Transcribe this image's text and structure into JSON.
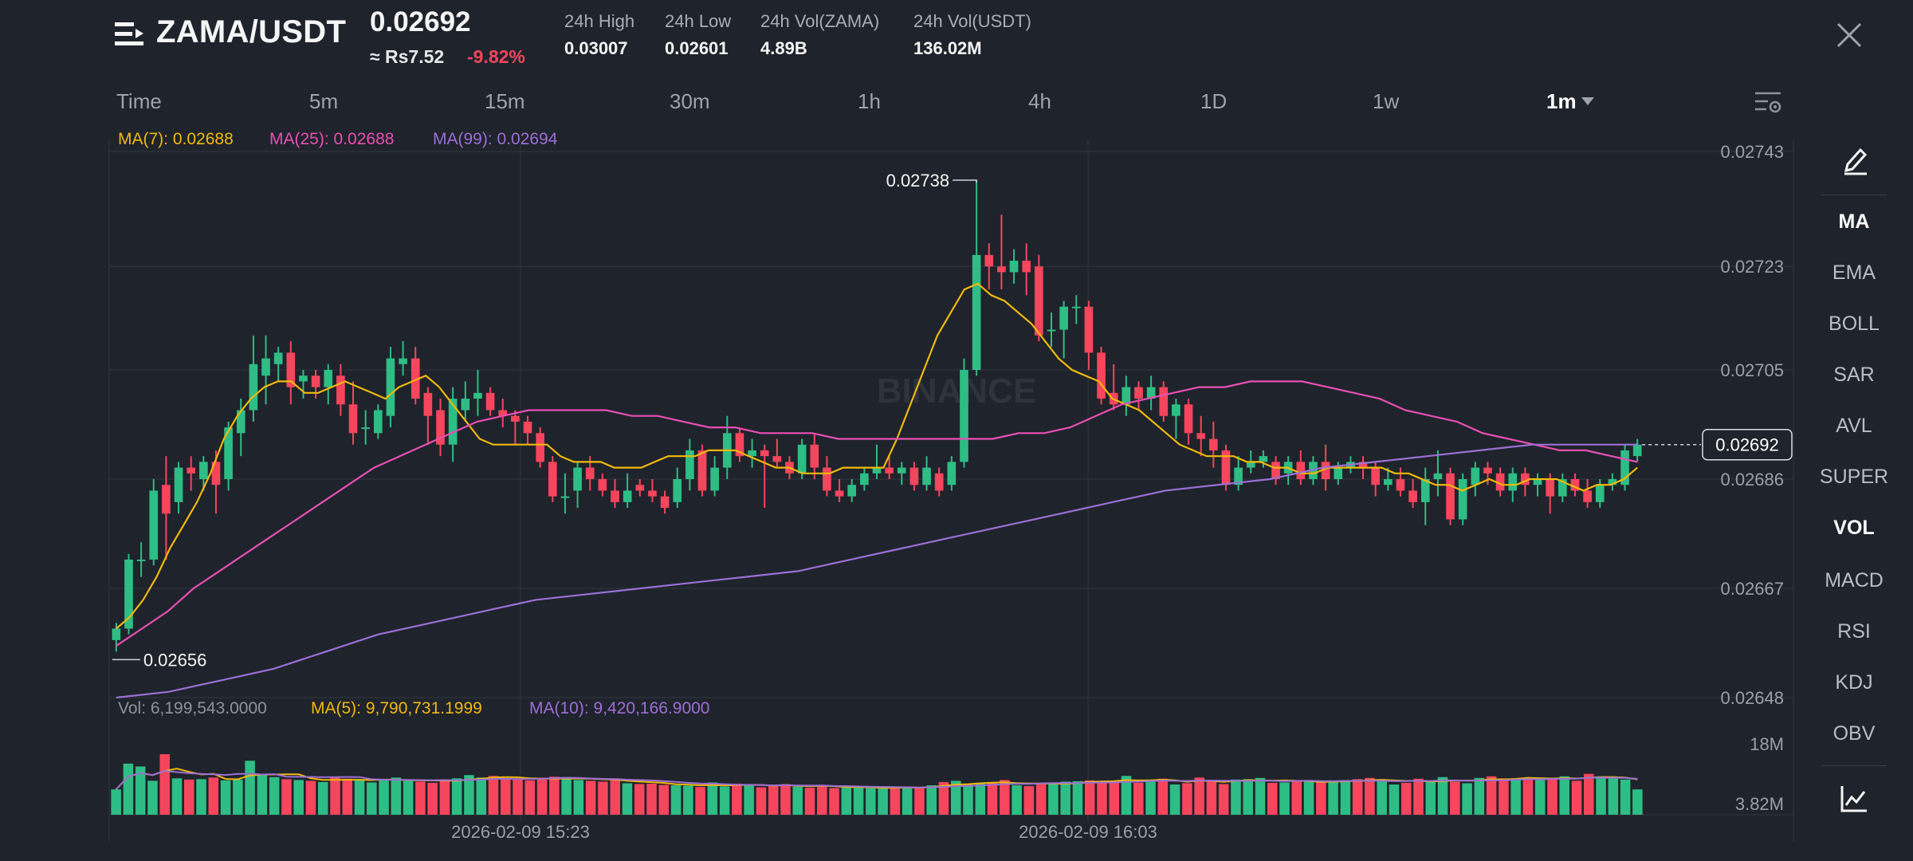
{
  "header": {
    "pair": "ZAMA/USDT",
    "last_price": "0.02692",
    "fiat_price": "≈ Rs7.52",
    "change_pct": "-9.82%",
    "stats": [
      {
        "label": "24h High",
        "value": "0.03007"
      },
      {
        "label": "24h Low",
        "value": "0.02601"
      },
      {
        "label": "24h Vol(ZAMA)",
        "value": "4.89B"
      },
      {
        "label": "24h Vol(USDT)",
        "value": "136.02M"
      }
    ],
    "icons": {
      "menu": "menu-icon",
      "close": "close-icon"
    }
  },
  "tabs": [
    {
      "label": "Time"
    },
    {
      "label": "5m"
    },
    {
      "label": "15m"
    },
    {
      "label": "30m"
    },
    {
      "label": "1h"
    },
    {
      "label": "4h"
    },
    {
      "label": "1D"
    },
    {
      "label": "1w"
    },
    {
      "label": "1m",
      "selected": true
    }
  ],
  "legends": {
    "ma7": "MA(7): 0.02688",
    "ma25": "MA(25): 0.02688",
    "ma99": "MA(99): 0.02694",
    "vol": "Vol: 6,199,543.0000",
    "vol_ma5": "MA(5): 9,790,731.1999",
    "vol_ma10": "MA(10): 9,420,166.9000"
  },
  "price_axis": [
    "0.02743",
    "0.02723",
    "0.02705",
    "0.02686",
    "0.02667",
    "0.02648"
  ],
  "current_price_tag": "0.02692",
  "high_marker": "0.02738",
  "low_marker": "0.02656",
  "volume_axis": [
    "18M",
    "3.82M"
  ],
  "time_axis": [
    "2026-02-09 15:23",
    "2026-02-09 16:03"
  ],
  "watermark": "BINANCE",
  "sidebar": {
    "items": [
      {
        "label": "MA",
        "active": true
      },
      {
        "label": "EMA"
      },
      {
        "label": "BOLL"
      },
      {
        "label": "SAR"
      },
      {
        "label": "AVL"
      },
      {
        "label": "SUPER"
      },
      {
        "label": "VOL",
        "active": true
      },
      {
        "label": "MACD"
      },
      {
        "label": "RSI"
      },
      {
        "label": "KDJ"
      },
      {
        "label": "OBV"
      }
    ],
    "icons": {
      "top": "pencil-draw-icon",
      "bottom": "line-chart-icon"
    }
  },
  "colors": {
    "background": "#1f232b",
    "up": "#2ebd85",
    "down": "#f6465d",
    "ma7": "#f0b90b",
    "ma25": "#e84fb4",
    "ma99": "#9b6fd6",
    "grid": "#2b3039"
  },
  "chart_data": {
    "type": "candlestick",
    "interval": "1m",
    "y_range": [
      0.02648,
      0.02743
    ],
    "candles": [
      [
        0.02658,
        0.0266,
        0.02656,
        0.02661
      ],
      [
        0.0266,
        0.02672,
        0.02659,
        0.02673
      ],
      [
        0.02672,
        0.02672,
        0.02669,
        0.02675
      ],
      [
        0.02672,
        0.02684,
        0.02671,
        0.02686
      ],
      [
        0.02685,
        0.0268,
        0.02672,
        0.0269
      ],
      [
        0.02682,
        0.02688,
        0.0268,
        0.02689
      ],
      [
        0.02688,
        0.02687,
        0.02684,
        0.0269
      ],
      [
        0.02686,
        0.02689,
        0.02684,
        0.0269
      ],
      [
        0.02689,
        0.02685,
        0.0268,
        0.02691
      ],
      [
        0.02686,
        0.02695,
        0.02684,
        0.02696
      ],
      [
        0.02694,
        0.02698,
        0.0269,
        0.027
      ],
      [
        0.02698,
        0.02706,
        0.02696,
        0.02711
      ],
      [
        0.02704,
        0.02707,
        0.02699,
        0.02711
      ],
      [
        0.02706,
        0.02708,
        0.02703,
        0.02709
      ],
      [
        0.02708,
        0.02702,
        0.02699,
        0.0271
      ],
      [
        0.02703,
        0.02704,
        0.027,
        0.02705
      ],
      [
        0.02704,
        0.02702,
        0.027,
        0.02705
      ],
      [
        0.02702,
        0.02705,
        0.02699,
        0.02706
      ],
      [
        0.02704,
        0.02699,
        0.02697,
        0.02706
      ],
      [
        0.02699,
        0.02694,
        0.02692,
        0.02703
      ],
      [
        0.02695,
        0.02695,
        0.02692,
        0.02698
      ],
      [
        0.02694,
        0.02698,
        0.02693,
        0.02699
      ],
      [
        0.02697,
        0.02707,
        0.02695,
        0.02709
      ],
      [
        0.02706,
        0.02707,
        0.02704,
        0.0271
      ],
      [
        0.02707,
        0.027,
        0.02699,
        0.02709
      ],
      [
        0.02701,
        0.02697,
        0.02692,
        0.02702
      ],
      [
        0.02698,
        0.02692,
        0.0269,
        0.027
      ],
      [
        0.02692,
        0.027,
        0.02689,
        0.02702
      ],
      [
        0.02698,
        0.027,
        0.02696,
        0.02703
      ],
      [
        0.027,
        0.02701,
        0.02697,
        0.02705
      ],
      [
        0.02701,
        0.02698,
        0.02697,
        0.02702
      ],
      [
        0.02698,
        0.02697,
        0.02695,
        0.027
      ],
      [
        0.02697,
        0.02696,
        0.02692,
        0.02698
      ],
      [
        0.02696,
        0.02694,
        0.02692,
        0.02697
      ],
      [
        0.02694,
        0.02689,
        0.02688,
        0.02695
      ],
      [
        0.02689,
        0.02683,
        0.02682,
        0.0269
      ],
      [
        0.02683,
        0.02683,
        0.0268,
        0.02687
      ],
      [
        0.02684,
        0.02688,
        0.02681,
        0.02689
      ],
      [
        0.02688,
        0.02686,
        0.02684,
        0.0269
      ],
      [
        0.02686,
        0.02684,
        0.02683,
        0.02687
      ],
      [
        0.02684,
        0.02682,
        0.02681,
        0.02686
      ],
      [
        0.02682,
        0.02684,
        0.02681,
        0.02687
      ],
      [
        0.02685,
        0.02684,
        0.02683,
        0.02686
      ],
      [
        0.02684,
        0.02683,
        0.02682,
        0.02686
      ],
      [
        0.02683,
        0.02681,
        0.0268,
        0.02684
      ],
      [
        0.02682,
        0.02686,
        0.02681,
        0.02688
      ],
      [
        0.02686,
        0.02691,
        0.02684,
        0.02693
      ],
      [
        0.02691,
        0.02684,
        0.02683,
        0.02692
      ],
      [
        0.02684,
        0.02688,
        0.02683,
        0.0269
      ],
      [
        0.02688,
        0.02694,
        0.02686,
        0.02697
      ],
      [
        0.02694,
        0.0269,
        0.02689,
        0.02695
      ],
      [
        0.0269,
        0.02691,
        0.02688,
        0.02693
      ],
      [
        0.02691,
        0.0269,
        0.02681,
        0.02692
      ],
      [
        0.0269,
        0.02689,
        0.02688,
        0.02693
      ],
      [
        0.02689,
        0.02687,
        0.02686,
        0.0269
      ],
      [
        0.02687,
        0.02692,
        0.02686,
        0.02693
      ],
      [
        0.02692,
        0.02688,
        0.02686,
        0.02694
      ],
      [
        0.02688,
        0.02684,
        0.02683,
        0.0269
      ],
      [
        0.02684,
        0.02683,
        0.02682,
        0.02686
      ],
      [
        0.02683,
        0.02685,
        0.02682,
        0.02686
      ],
      [
        0.02685,
        0.02687,
        0.02684,
        0.02688
      ],
      [
        0.02687,
        0.02688,
        0.02686,
        0.02692
      ],
      [
        0.02688,
        0.02687,
        0.02686,
        0.0269
      ],
      [
        0.02687,
        0.02688,
        0.02685,
        0.02689
      ],
      [
        0.02688,
        0.02685,
        0.02684,
        0.02689
      ],
      [
        0.02685,
        0.02688,
        0.02684,
        0.0269
      ],
      [
        0.02687,
        0.02684,
        0.02683,
        0.02688
      ],
      [
        0.02685,
        0.02689,
        0.02684,
        0.0269
      ],
      [
        0.02689,
        0.02705,
        0.02688,
        0.02707
      ],
      [
        0.02705,
        0.02725,
        0.02704,
        0.02738
      ],
      [
        0.02725,
        0.02723,
        0.02719,
        0.02727
      ],
      [
        0.02723,
        0.02722,
        0.02719,
        0.02732
      ],
      [
        0.02722,
        0.02724,
        0.0272,
        0.02726
      ],
      [
        0.02724,
        0.02722,
        0.02718,
        0.02727
      ],
      [
        0.02723,
        0.02711,
        0.0271,
        0.02725
      ],
      [
        0.02712,
        0.02712,
        0.02709,
        0.02715
      ],
      [
        0.02712,
        0.02716,
        0.02707,
        0.02717
      ],
      [
        0.02716,
        0.02716,
        0.02713,
        0.02718
      ],
      [
        0.02716,
        0.02708,
        0.02705,
        0.02717
      ],
      [
        0.02708,
        0.027,
        0.02699,
        0.02709
      ],
      [
        0.02701,
        0.02699,
        0.02698,
        0.02706
      ],
      [
        0.02699,
        0.02702,
        0.02697,
        0.02704
      ],
      [
        0.02702,
        0.027,
        0.02698,
        0.02703
      ],
      [
        0.027,
        0.02702,
        0.02698,
        0.02704
      ],
      [
        0.02702,
        0.02697,
        0.02696,
        0.02703
      ],
      [
        0.02697,
        0.02699,
        0.02693,
        0.027
      ],
      [
        0.02699,
        0.02694,
        0.02692,
        0.027
      ],
      [
        0.02694,
        0.02693,
        0.0269,
        0.02697
      ],
      [
        0.02693,
        0.02691,
        0.02688,
        0.02696
      ],
      [
        0.02691,
        0.02685,
        0.02684,
        0.02692
      ],
      [
        0.02685,
        0.02688,
        0.02684,
        0.0269
      ],
      [
        0.02688,
        0.02689,
        0.02687,
        0.02691
      ],
      [
        0.02689,
        0.0269,
        0.02688,
        0.02691
      ],
      [
        0.02689,
        0.02686,
        0.02685,
        0.0269
      ],
      [
        0.02687,
        0.02689,
        0.02685,
        0.0269
      ],
      [
        0.02689,
        0.02686,
        0.02685,
        0.02691
      ],
      [
        0.02686,
        0.02689,
        0.02685,
        0.0269
      ],
      [
        0.02689,
        0.02686,
        0.02684,
        0.02692
      ],
      [
        0.02686,
        0.02688,
        0.02685,
        0.02689
      ],
      [
        0.02688,
        0.02689,
        0.02687,
        0.0269
      ],
      [
        0.02689,
        0.02688,
        0.02686,
        0.0269
      ],
      [
        0.02688,
        0.02685,
        0.02683,
        0.02689
      ],
      [
        0.02685,
        0.02686,
        0.02684,
        0.02688
      ],
      [
        0.02686,
        0.02684,
        0.02683,
        0.02688
      ],
      [
        0.02684,
        0.02682,
        0.02681,
        0.02686
      ],
      [
        0.02682,
        0.02686,
        0.02678,
        0.02688
      ],
      [
        0.02686,
        0.02687,
        0.02683,
        0.02691
      ],
      [
        0.02687,
        0.02679,
        0.02678,
        0.02688
      ],
      [
        0.02679,
        0.02686,
        0.02678,
        0.02687
      ],
      [
        0.02685,
        0.02688,
        0.02683,
        0.02689
      ],
      [
        0.02688,
        0.02687,
        0.02685,
        0.02689
      ],
      [
        0.02687,
        0.02684,
        0.02683,
        0.02688
      ],
      [
        0.02684,
        0.02687,
        0.02682,
        0.02688
      ],
      [
        0.02687,
        0.02685,
        0.02683,
        0.02688
      ],
      [
        0.02685,
        0.02686,
        0.02683,
        0.02687
      ],
      [
        0.02686,
        0.02683,
        0.0268,
        0.02687
      ],
      [
        0.02683,
        0.02686,
        0.02682,
        0.02687
      ],
      [
        0.02686,
        0.02684,
        0.02683,
        0.02687
      ],
      [
        0.02684,
        0.02682,
        0.02681,
        0.02686
      ],
      [
        0.02682,
        0.02685,
        0.02681,
        0.02686
      ],
      [
        0.02685,
        0.02686,
        0.02684,
        0.02687
      ],
      [
        0.02685,
        0.02691,
        0.02684,
        0.02692
      ],
      [
        0.0269,
        0.02692,
        0.02689,
        0.02693
      ]
    ],
    "volume_range": [
      3820000,
      18000000
    ],
    "volumes": [
      6.2,
      12.5,
      11.8,
      8.3,
      14.8,
      8.9,
      8.6,
      8.7,
      9.1,
      8.4,
      8.6,
      13.2,
      9.8,
      9.2,
      8.7,
      8.5,
      8.3,
      8.0,
      9.2,
      8.8,
      8.5,
      7.9,
      8.6,
      9.1,
      8.3,
      8.1,
      7.8,
      8.4,
      8.9,
      9.7,
      9.1,
      9.5,
      8.9,
      8.6,
      8.4,
      8.8,
      9.3,
      9.2,
      8.5,
      8.3,
      8.1,
      8.9,
      7.7,
      7.5,
      7.6,
      7.3,
      7.2,
      7.1,
      6.8,
      7.9,
      6.9,
      7.6,
      7.3,
      6.7,
      7.1,
      7.5,
      6.9,
      6.6,
      7.3,
      6.5,
      6.6,
      6.7,
      6.5,
      6.4,
      6.8,
      6.9,
      6.5,
      7.2,
      8.0,
      8.3,
      7.4,
      7.6,
      7.9,
      8.5,
      7.2,
      7.0,
      7.6,
      7.9,
      8.1,
      8.2,
      8.4,
      8.0,
      8.3,
      9.5,
      7.8,
      8.6,
      8.8,
      7.4,
      7.7,
      9.1,
      8.4,
      7.5,
      8.6,
      8.7,
      9.0,
      7.8,
      7.9,
      8.1,
      8.3,
      7.9,
      8.2,
      8.4,
      8.7,
      9.0,
      8.5,
      7.4,
      7.8,
      8.8,
      8.0,
      9.2,
      8.1,
      7.7,
      9.0,
      9.4,
      8.9,
      8.8,
      9.1,
      8.5,
      9.0,
      9.4,
      8.3,
      10.0,
      9.4,
      9.1,
      8.6,
      6.2
    ],
    "ma_lines": [
      {
        "name": "MA(7)",
        "color": "#f0b90b",
        "values": [
          0.0266,
          0.02662,
          0.02665,
          0.02669,
          0.02674,
          0.02678,
          0.02682,
          0.02687,
          0.02693,
          0.02697,
          0.027,
          0.02702,
          0.02703,
          0.02703,
          0.02701,
          0.02701,
          0.02702,
          0.02703,
          0.02702,
          0.02701,
          0.027,
          0.02702,
          0.02703,
          0.02704,
          0.02702,
          0.02699,
          0.02696,
          0.02693,
          0.02692,
          0.02692,
          0.02692,
          0.02692,
          0.02692,
          0.0269,
          0.02689,
          0.02689,
          0.02689,
          0.02688,
          0.02688,
          0.02688,
          0.02689,
          0.0269,
          0.0269,
          0.0269,
          0.02691,
          0.02691,
          0.02691,
          0.0269,
          0.02689,
          0.02688,
          0.02688,
          0.02687,
          0.02687,
          0.02687,
          0.02688,
          0.02688,
          0.02688,
          0.02688,
          0.02693,
          0.02699,
          0.02705,
          0.02711,
          0.02715,
          0.02719,
          0.0272,
          0.02718,
          0.02717,
          0.02715,
          0.02713,
          0.0271,
          0.02707,
          0.02705,
          0.02704,
          0.02703,
          0.027,
          0.02699,
          0.02698,
          0.02696,
          0.02694,
          0.02692,
          0.02691,
          0.0269,
          0.0269,
          0.0269,
          0.02689,
          0.02689,
          0.02688,
          0.02688,
          0.02687,
          0.02687,
          0.02688,
          0.02688,
          0.02688,
          0.02688,
          0.02688,
          0.02687,
          0.02687,
          0.02686,
          0.02685,
          0.02685,
          0.02684,
          0.02685,
          0.02686,
          0.02685,
          0.02685,
          0.02686,
          0.02686,
          0.02686,
          0.02685,
          0.02684,
          0.02685,
          0.02685,
          0.02686,
          0.02688
        ]
      },
      {
        "name": "MA(25)",
        "color": "#e84fb4",
        "values": [
          0.02657,
          0.0266,
          0.02663,
          0.02667,
          0.0267,
          0.02673,
          0.02676,
          0.02679,
          0.02682,
          0.02685,
          0.02688,
          0.0269,
          0.02692,
          0.02694,
          0.02696,
          0.02697,
          0.02698,
          0.02698,
          0.02698,
          0.02698,
          0.02697,
          0.02697,
          0.02696,
          0.02695,
          0.02695,
          0.02694,
          0.02694,
          0.02694,
          0.02693,
          0.02693,
          0.02693,
          0.02693,
          0.02693,
          0.02693,
          0.02693,
          0.02694,
          0.02694,
          0.02695,
          0.02697,
          0.02699,
          0.027,
          0.02701,
          0.02702,
          0.02702,
          0.02703,
          0.02703,
          0.02703,
          0.02702,
          0.02701,
          0.027,
          0.02698,
          0.02697,
          0.02696,
          0.02694,
          0.02693,
          0.02692,
          0.02691,
          0.02691,
          0.0269,
          0.02689
        ]
      },
      {
        "name": "MA(99)",
        "color": "#9b6fd6",
        "values": [
          0.02648,
          0.02649,
          0.02651,
          0.02653,
          0.02656,
          0.02659,
          0.02661,
          0.02663,
          0.02665,
          0.02666,
          0.02667,
          0.02668,
          0.02669,
          0.0267,
          0.02672,
          0.02674,
          0.02676,
          0.02678,
          0.0268,
          0.02682,
          0.02684,
          0.02685,
          0.02686,
          0.02688,
          0.02689,
          0.0269,
          0.02691,
          0.02692,
          0.02692,
          0.02692
        ]
      }
    ],
    "vol_ma_lines": [
      {
        "name": "MA(5)",
        "color": "#f0b90b"
      },
      {
        "name": "MA(10)",
        "color": "#9b6fd6"
      }
    ]
  }
}
